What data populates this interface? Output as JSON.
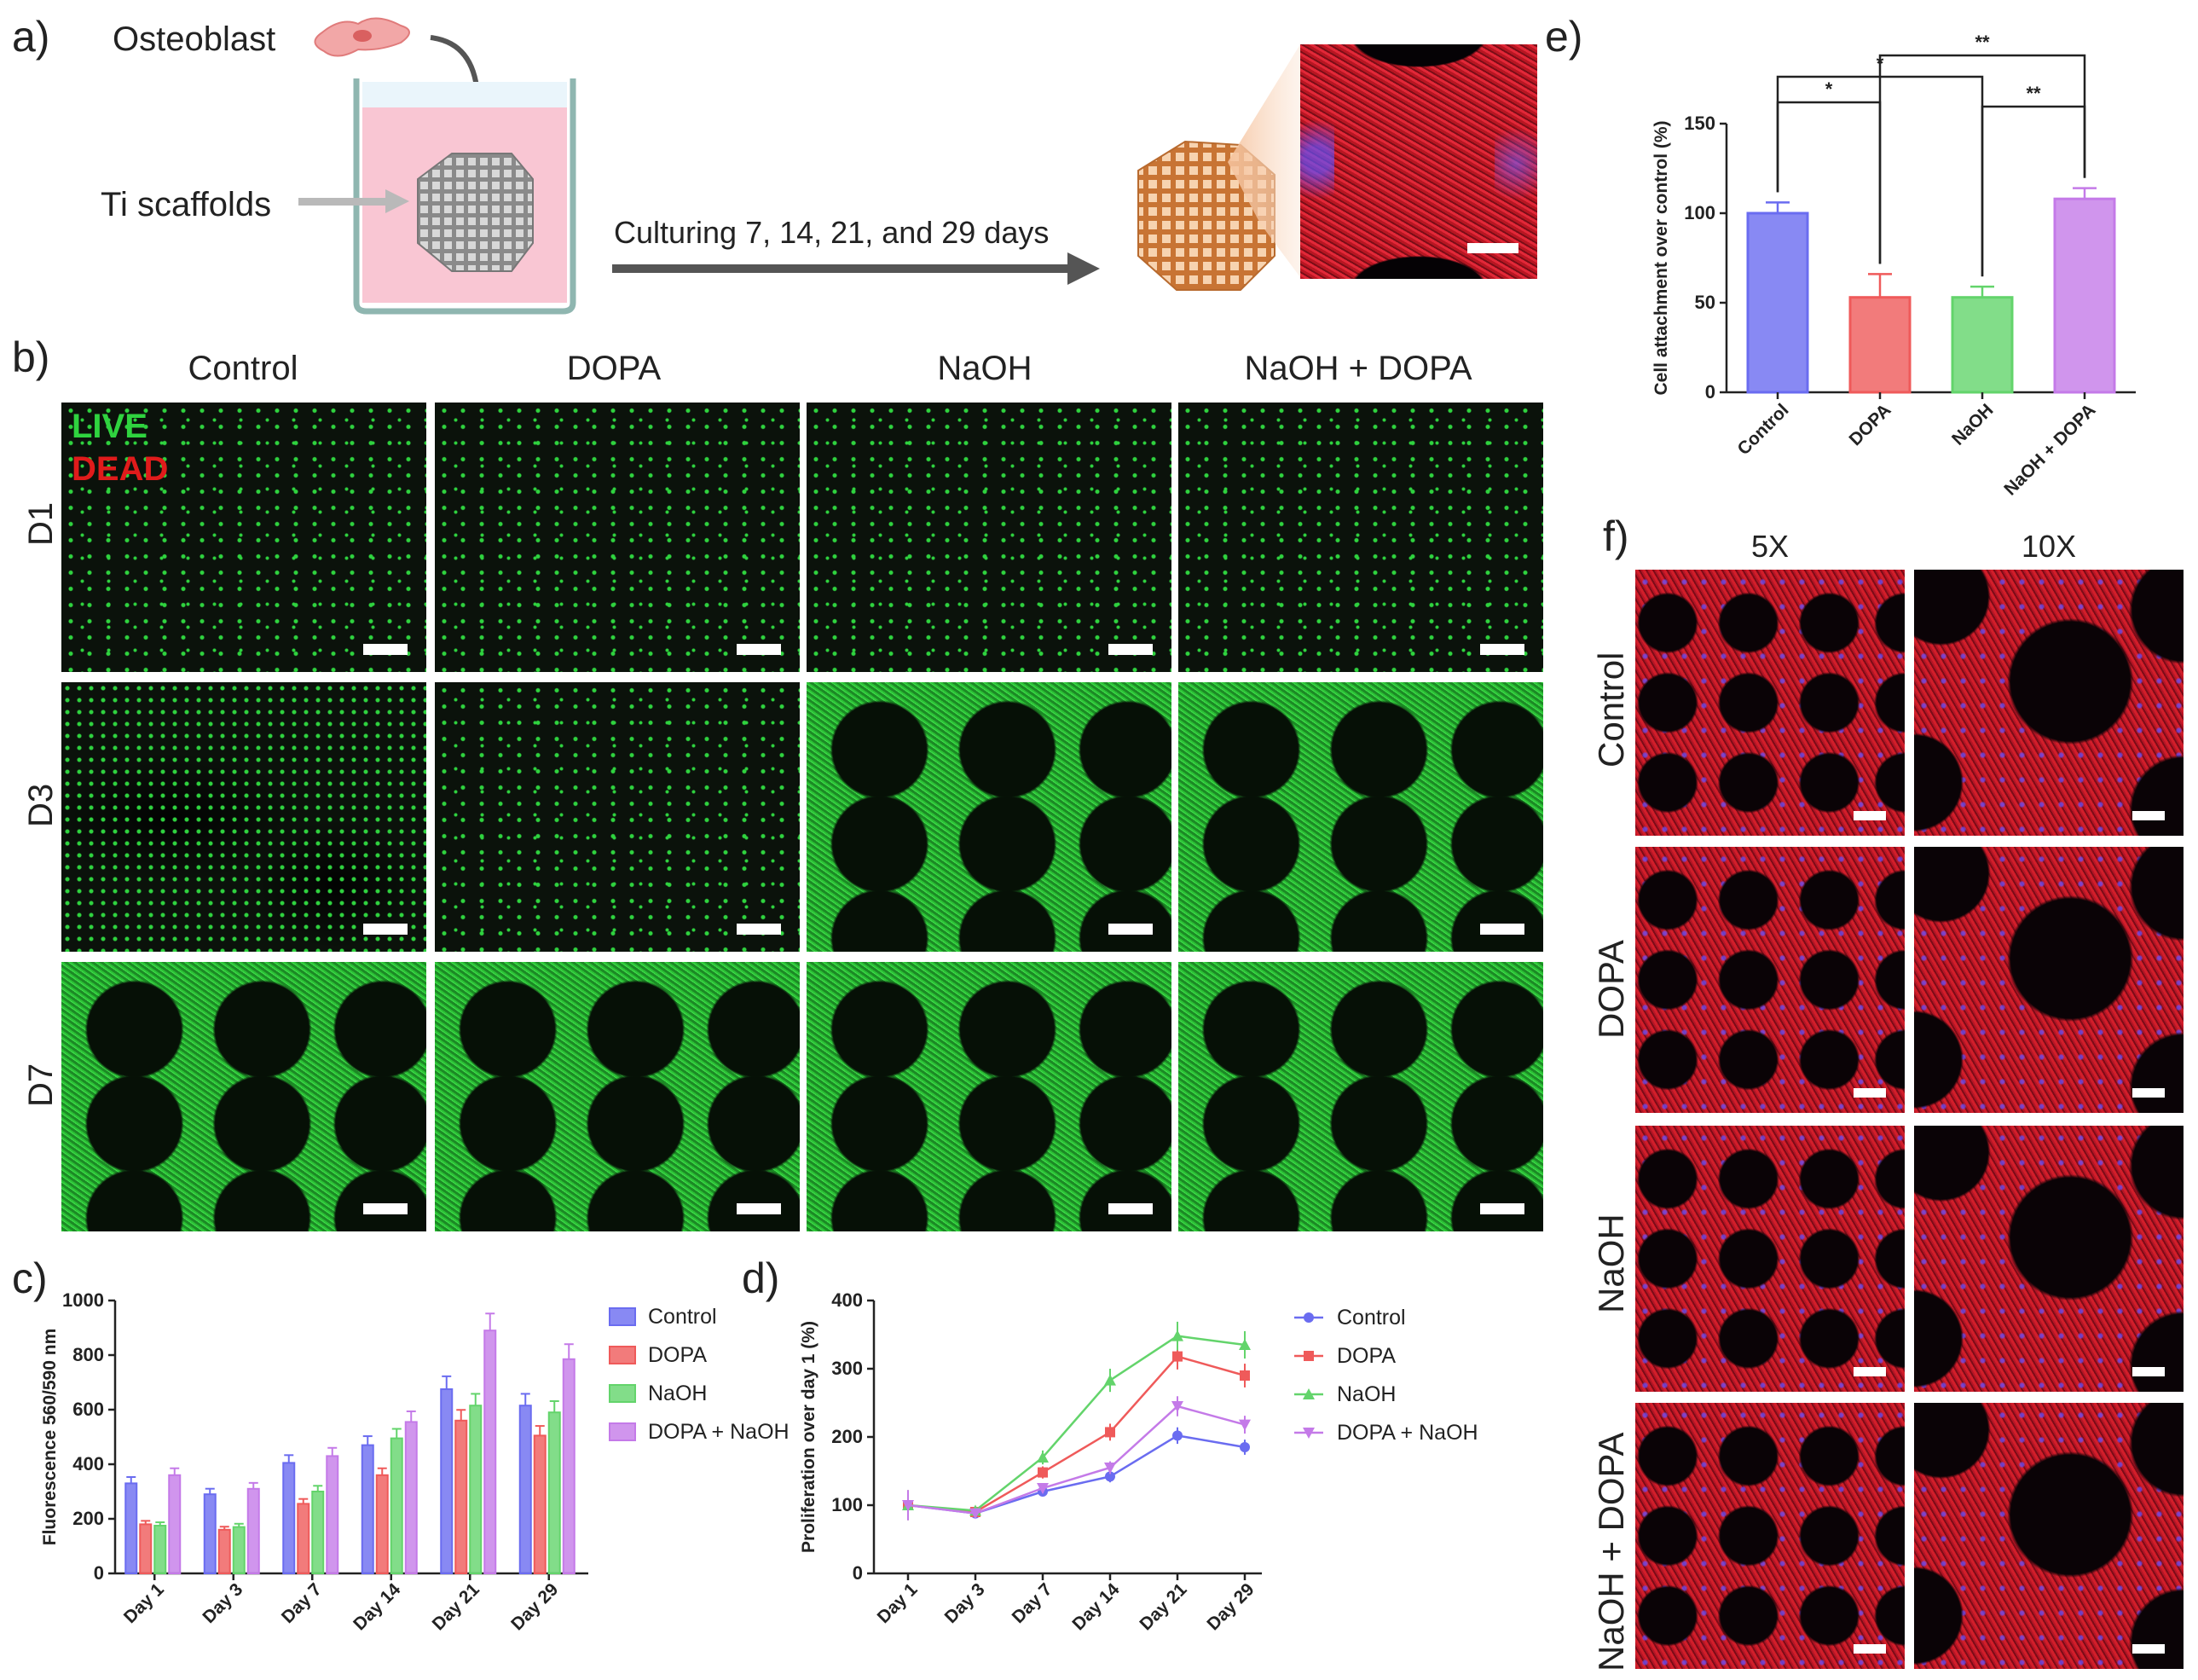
{
  "panels": {
    "a": "a)",
    "b": "b)",
    "c": "c)",
    "d": "d)",
    "e": "e)",
    "f": "f)"
  },
  "panel_a": {
    "osteoblast_label": "Osteoblast",
    "scaffold_label": "Ti scaffolds",
    "culture_label": "Culturing 7, 14, 21, and 29 days"
  },
  "panel_b": {
    "columns": [
      "Control",
      "DOPA",
      "NaOH",
      "NaOH + DOPA"
    ],
    "rows": [
      "D1",
      "D3",
      "D7"
    ],
    "legend_live": "LIVE",
    "legend_dead": "DEAD",
    "colors": {
      "live": "#2fd33f",
      "dead": "#e01b1b",
      "bg": "#0b120b"
    }
  },
  "panel_f": {
    "columns": [
      "5X",
      "10X"
    ],
    "rows": [
      "Control",
      "DOPA",
      "NaOH",
      "NaOH + DOPA"
    ],
    "colors": {
      "actin": "#d21e2a",
      "nuclei": "#5a4bff",
      "bg": "#0a0306"
    }
  },
  "series_colors": {
    "Control": "#6a6cf0",
    "DOPA": "#ef5a5a",
    "NaOH": "#63d46b",
    "DOPA + NaOH": "#c47ae8"
  },
  "chart_data": [
    {
      "id": "c",
      "type": "bar",
      "title": "",
      "xlabel": "",
      "ylabel": "Fluorescence 560/590 nm",
      "ylim": [
        0,
        1000
      ],
      "yticks": [
        0,
        200,
        400,
        600,
        800,
        1000
      ],
      "categories": [
        "Day 1",
        "Day 3",
        "Day 7",
        "Day 14",
        "Day 21",
        "Day 29"
      ],
      "series": [
        {
          "name": "Control",
          "values": [
            330,
            290,
            405,
            470,
            675,
            615
          ]
        },
        {
          "name": "DOPA",
          "values": [
            180,
            160,
            255,
            360,
            560,
            505
          ]
        },
        {
          "name": "NaOH",
          "values": [
            175,
            170,
            300,
            495,
            615,
            590
          ]
        },
        {
          "name": "DOPA + NaOH",
          "values": [
            360,
            310,
            430,
            555,
            890,
            785
          ]
        }
      ],
      "legend": "right"
    },
    {
      "id": "d",
      "type": "line",
      "title": "",
      "xlabel": "",
      "ylabel": "Proliferation over day 1 (%)",
      "ylim": [
        0,
        400
      ],
      "yticks": [
        0,
        100,
        200,
        300,
        400
      ],
      "categories": [
        "Day 1",
        "Day 3",
        "Day 7",
        "Day 14",
        "Day 21",
        "Day 29"
      ],
      "series": [
        {
          "name": "Control",
          "marker": "circle",
          "values": [
            100,
            88,
            120,
            142,
            202,
            185
          ]
        },
        {
          "name": "DOPA",
          "marker": "square",
          "values": [
            100,
            90,
            148,
            207,
            318,
            290
          ]
        },
        {
          "name": "NaOH",
          "marker": "triangle-up",
          "values": [
            100,
            92,
            170,
            283,
            348,
            335
          ]
        },
        {
          "name": "DOPA + NaOH",
          "marker": "triangle-down",
          "values": [
            100,
            88,
            125,
            155,
            245,
            218
          ]
        }
      ],
      "legend": "right"
    },
    {
      "id": "e",
      "type": "bar",
      "title": "",
      "xlabel": "",
      "ylabel": "Cell attachment over control (%)",
      "ylim": [
        0,
        150
      ],
      "yticks": [
        0,
        50,
        100,
        150
      ],
      "categories": [
        "Control",
        "DOPA",
        "NaOH",
        "NaOH + DOPA"
      ],
      "values": [
        100,
        53,
        53,
        108
      ],
      "significance": [
        {
          "pair": [
            "Control",
            "DOPA"
          ],
          "label": "*"
        },
        {
          "pair": [
            "Control",
            "NaOH"
          ],
          "label": "*"
        },
        {
          "pair": [
            "NaOH",
            "NaOH + DOPA"
          ],
          "label": "**"
        },
        {
          "pair": [
            "DOPA",
            "NaOH + DOPA"
          ],
          "label": "**"
        }
      ]
    }
  ]
}
